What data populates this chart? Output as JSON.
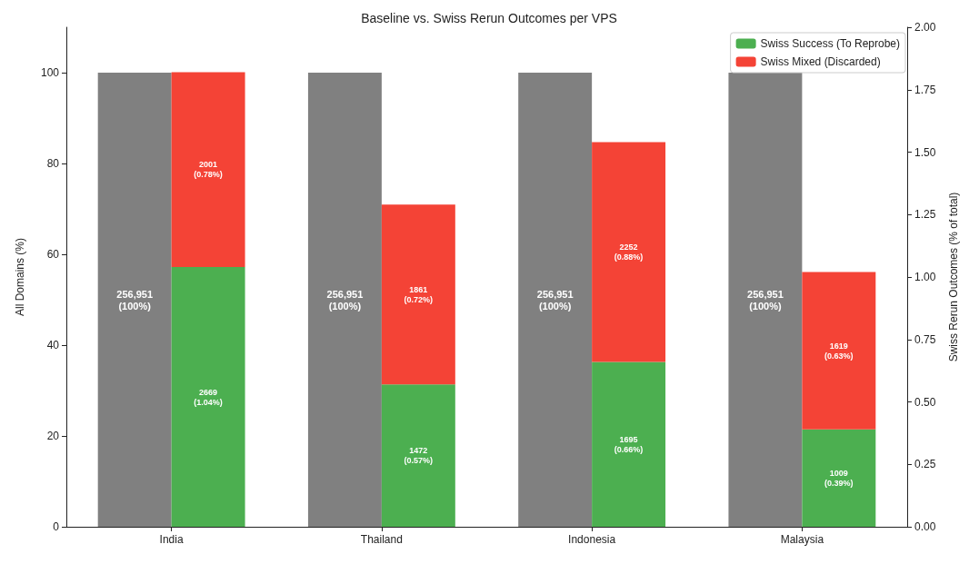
{
  "chart_data": {
    "type": "bar",
    "title": "Baseline vs. Swiss Rerun Outcomes per VPS",
    "categories": [
      "India",
      "Thailand",
      "Indonesia",
      "Malaysia"
    ],
    "ylabel": "All Domains (%)",
    "y2label": "Swiss Rerun Outcomes (% of total)",
    "ylim": [
      0,
      110
    ],
    "yticks": [
      0,
      20,
      40,
      60,
      80,
      100
    ],
    "y2lim": [
      0,
      2.0
    ],
    "y2ticks": [
      {
        "value": 0,
        "label": "0.00"
      },
      {
        "value": 0.25,
        "label": "0.25"
      },
      {
        "value": 0.5,
        "label": "0.50"
      },
      {
        "value": 0.75,
        "label": "0.75"
      },
      {
        "value": 1,
        "label": "1.00"
      },
      {
        "value": 1.25,
        "label": "1.25"
      },
      {
        "value": 1.5,
        "label": "1.50"
      },
      {
        "value": 1.75,
        "label": "1.75"
      },
      {
        "value": 2,
        "label": "2.00"
      }
    ],
    "stacked": true,
    "grid": false,
    "legend": "top right",
    "series": [
      {
        "color": "#808080",
        "axis": "y",
        "values": [
          100,
          100,
          100,
          100
        ],
        "value_labels": [
          "256,951\n(100%)",
          "256,951\n(100%)",
          "256,951\n(100%)",
          "256,951\n(100%)"
        ]
      },
      {
        "name": "Swiss Success (To Reprobe)",
        "color": "#4caf50",
        "axis": "y2",
        "values": [
          1.04,
          0.57,
          0.66,
          0.39
        ],
        "value_labels": [
          "2669\n(1.04%)",
          "1472\n(0.57%)",
          "1695\n(0.66%)",
          "1009\n(0.39%)"
        ]
      },
      {
        "name": "Swiss Mixed (Discarded)",
        "color": "#f44336",
        "axis": "y2",
        "values": [
          0.78,
          0.72,
          0.88,
          0.63
        ],
        "value_labels": [
          "2001\n(0.78%)",
          "1861\n(0.72%)",
          "2252\n(0.88%)",
          "1619\n(0.63%)"
        ]
      }
    ]
  }
}
